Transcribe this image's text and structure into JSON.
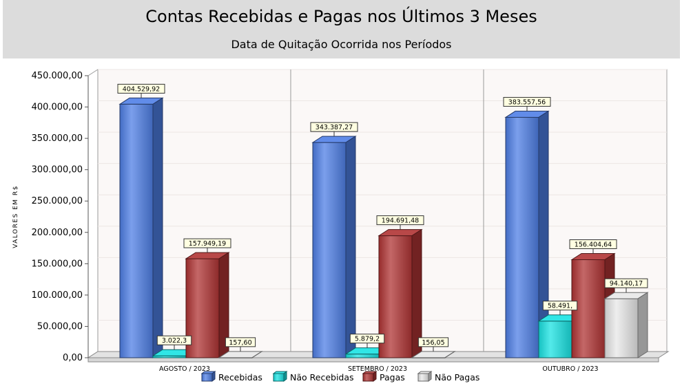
{
  "header": {
    "title": "Contas Recebidas e Pagas nos Últimos 3 Meses",
    "subtitle": "Data de Quitação Ocorrida nos Períodos"
  },
  "chart_data": {
    "type": "bar",
    "ylabel": "VALORES EM R$",
    "ylim": [
      0,
      450000
    ],
    "yticks": [
      0,
      50000,
      100000,
      150000,
      200000,
      250000,
      300000,
      350000,
      400000,
      450000
    ],
    "ytick_labels": [
      "0,00",
      "50.000,00",
      "100.000,00",
      "150.000,00",
      "200.000,00",
      "250.000,00",
      "300.000,00",
      "350.000,00",
      "400.000,00",
      "450.000,00"
    ],
    "categories": [
      "AGOSTO / 2023",
      "SETEMBRO / 2023",
      "OUTUBRO / 2023"
    ],
    "legend_position": "bottom-center",
    "grid": true,
    "series": [
      {
        "name": "Recebidas",
        "color": "#4f7fe6",
        "values": [
          404529.92,
          343387.27,
          383557.56
        ],
        "labels": [
          "404.529,92",
          "343.387,27",
          "383.557,56"
        ]
      },
      {
        "name": "Não Recebidas",
        "color": "#19e3e3",
        "values": [
          3022.3,
          5879.2,
          58491.0
        ],
        "labels": [
          "3.022,3",
          "5.879,2",
          "58.491,"
        ]
      },
      {
        "name": "Pagas",
        "color": "#b03434",
        "values": [
          157949.19,
          194691.48,
          156404.64
        ],
        "labels": [
          "157.949,19",
          "194.691,48",
          "156.404,64"
        ]
      },
      {
        "name": "Não Pagas",
        "color": "#e8e8e8",
        "values": [
          157.6,
          156.05,
          94140.17
        ],
        "labels": [
          "157,60",
          "156,05",
          "94.140,17"
        ]
      }
    ]
  }
}
